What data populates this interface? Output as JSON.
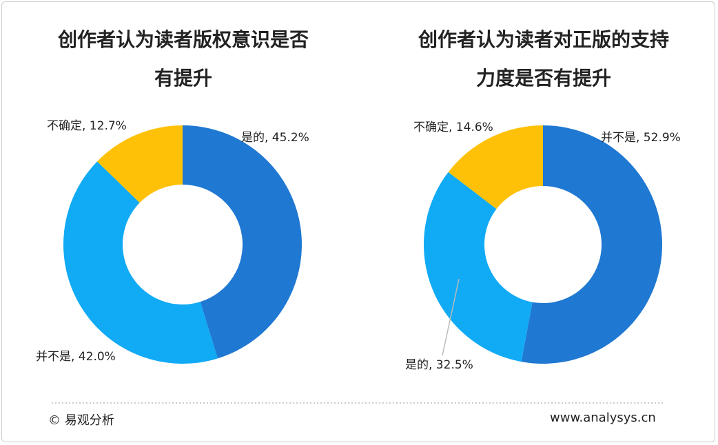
{
  "charts": {
    "chart_data": [
      {
        "type": "pie",
        "title": "创作者认为读者版权意识是否有提升",
        "categories": [
          "是的",
          "并不是",
          "不确定"
        ],
        "values": [
          45.2,
          42.0,
          12.7
        ],
        "value_labels": [
          "是的, 45.2%",
          "并不是, 42.0%",
          "不确定, 12.7%"
        ],
        "colors": [
          "#1f78d1",
          "#10aaf5",
          "#ffc107"
        ]
      },
      {
        "type": "pie",
        "title": "创作者认为读者对正版的支持力度是否有提升",
        "categories": [
          "并不是",
          "是的",
          "不确定"
        ],
        "values": [
          52.9,
          32.5,
          14.6
        ],
        "value_labels": [
          "并不是, 52.9%",
          "是的, 32.5%",
          "不确定, 14.6%"
        ],
        "colors": [
          "#1f78d1",
          "#10aaf5",
          "#ffc107"
        ]
      }
    ]
  },
  "footer": {
    "source": "© 易观分析",
    "url": "www.analysys.cn"
  }
}
